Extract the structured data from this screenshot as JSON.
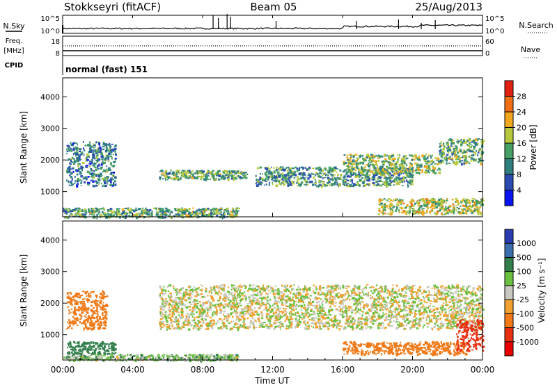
{
  "header": {
    "station": "Stokkseyri (fitACF)",
    "beam": "Beam 05",
    "date": "25/Aug/2013"
  },
  "noise_panel": {
    "left_label": "N.Sky",
    "left_ticks": [
      "10^5",
      "10^0"
    ],
    "right_label": "N.Search",
    "right_ticks": [
      "10^5",
      "10^0"
    ]
  },
  "freq_panel": {
    "left_label_1": "Freq.",
    "left_label_2": "[MHz]",
    "left_ticks": [
      "18",
      "8"
    ],
    "right_label": "Nave",
    "right_ticks": [
      "60",
      "0"
    ],
    "cpid_label": "CPID",
    "mode_text": "normal (fast) 151"
  },
  "time_axis": {
    "ticks": [
      "00:00",
      "04:00",
      "08:00",
      "12:00",
      "16:00",
      "20:00",
      "00:00"
    ],
    "label": "Time UT"
  },
  "colors": {
    "power_scale": [
      "#0a14f0",
      "#2c4bb0",
      "#2f7f7f",
      "#45a065",
      "#b8c83c",
      "#f0a61e",
      "#f06e14",
      "#e02010"
    ],
    "velocity_scale": [
      "#2a3cb0",
      "#3d6fb0",
      "#327f4c",
      "#6cc040",
      "#c8c8c0",
      "#f0a030",
      "#f07a18",
      "#e83010",
      "#e80000"
    ]
  },
  "chart_data": [
    {
      "type": "heatmap",
      "name": "power",
      "xlabel": "Time UT",
      "ylabel": "Slant Range [km]",
      "ylim": [
        200,
        4600
      ],
      "y_ticks": [
        1000,
        2000,
        3000,
        4000
      ],
      "colorbar": {
        "label": "Power [dB]",
        "ticks": [
          "28",
          "24",
          "20",
          "16",
          "12",
          "8",
          "4"
        ],
        "range": [
          0,
          32
        ]
      },
      "features": [
        {
          "t_hours": [
            0.2,
            3.0
          ],
          "range_km": [
            1200,
            2600
          ],
          "typical_db": 10
        },
        {
          "t_hours": [
            0.0,
            10.0
          ],
          "range_km": [
            200,
            500
          ],
          "typical_db": 14
        },
        {
          "t_hours": [
            5.5,
            10.5
          ],
          "range_km": [
            1400,
            1700
          ],
          "typical_db": 14
        },
        {
          "t_hours": [
            11.0,
            20.0
          ],
          "range_km": [
            1200,
            1800
          ],
          "typical_db": 12
        },
        {
          "t_hours": [
            16.0,
            21.5
          ],
          "range_km": [
            1600,
            2200
          ],
          "typical_db": 16
        },
        {
          "t_hours": [
            18.0,
            24.0
          ],
          "range_km": [
            300,
            800
          ],
          "typical_db": 18
        },
        {
          "t_hours": [
            21.5,
            24.0
          ],
          "range_km": [
            1900,
            2700
          ],
          "typical_db": 14
        }
      ]
    },
    {
      "type": "heatmap",
      "name": "velocity",
      "xlabel": "Time UT",
      "ylabel": "Slant Range [km]",
      "ylim": [
        200,
        4600
      ],
      "y_ticks": [
        1000,
        2000,
        3000,
        4000
      ],
      "colorbar": {
        "label": "Velocity [m s⁻¹]",
        "ticks": [
          "1000",
          "500",
          "100",
          "25",
          "-25",
          "-100",
          "-500",
          "-1000"
        ],
        "range": [
          -1000,
          1000
        ]
      },
      "features": [
        {
          "t_hours": [
            0.2,
            2.5
          ],
          "range_km": [
            1200,
            2400
          ],
          "typical_ms": -400
        },
        {
          "t_hours": [
            0.2,
            3.0
          ],
          "range_km": [
            400,
            800
          ],
          "typical_ms": 200
        },
        {
          "t_hours": [
            0.0,
            10.0
          ],
          "range_km": [
            200,
            400
          ],
          "typical_ms": 60
        },
        {
          "t_hours": [
            5.5,
            24.0
          ],
          "range_km": [
            1200,
            2600
          ],
          "typical_ms": 0
        },
        {
          "t_hours": [
            16.0,
            23.0
          ],
          "range_km": [
            400,
            800
          ],
          "typical_ms": -300
        },
        {
          "t_hours": [
            22.5,
            24.0
          ],
          "range_km": [
            500,
            1500
          ],
          "typical_ms": -800
        }
      ]
    }
  ]
}
